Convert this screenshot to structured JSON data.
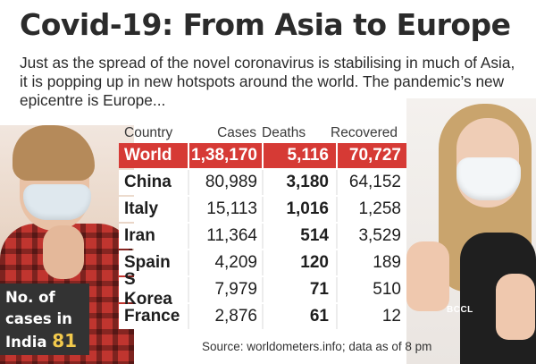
{
  "title": "Covid-19: From Asia to Europe",
  "intro": "Just as the spread of the novel coronavirus is stabilising in much of Asia, it is popping up in new hotspots around the world. The pandemic’s new epicentre is Europe...",
  "table": {
    "headers": {
      "country": "Country",
      "cases": "Cases",
      "deaths": "Deaths",
      "recovered": "Recovered"
    },
    "rows": [
      {
        "country": "World",
        "cases": "1,38,170",
        "deaths": "5,116",
        "recovered": "70,727"
      },
      {
        "country": "China",
        "cases": "80,989",
        "deaths": "3,180",
        "recovered": "64,152"
      },
      {
        "country": "Italy",
        "cases": "15,113",
        "deaths": "1,016",
        "recovered": "1,258"
      },
      {
        "country": "Iran",
        "cases": "11,364",
        "deaths": "514",
        "recovered": "3,529"
      },
      {
        "country": "Spain",
        "cases": "4,209",
        "deaths": "120",
        "recovered": "189"
      },
      {
        "country": "S Korea",
        "cases": "7,979",
        "deaths": "71",
        "recovered": "510"
      },
      {
        "country": "France",
        "cases": "2,876",
        "deaths": "61",
        "recovered": "12"
      }
    ]
  },
  "india_box": {
    "line1": "No. of",
    "line2": "cases in",
    "line3": "India",
    "count": "81"
  },
  "source": "Source: worldometers.info; data as of 8 pm",
  "photo_credit": "BCCL",
  "colors": {
    "highlight_red": "#d63a35",
    "india_count_yellow": "#f2c94c",
    "dark_box": "#333333"
  }
}
